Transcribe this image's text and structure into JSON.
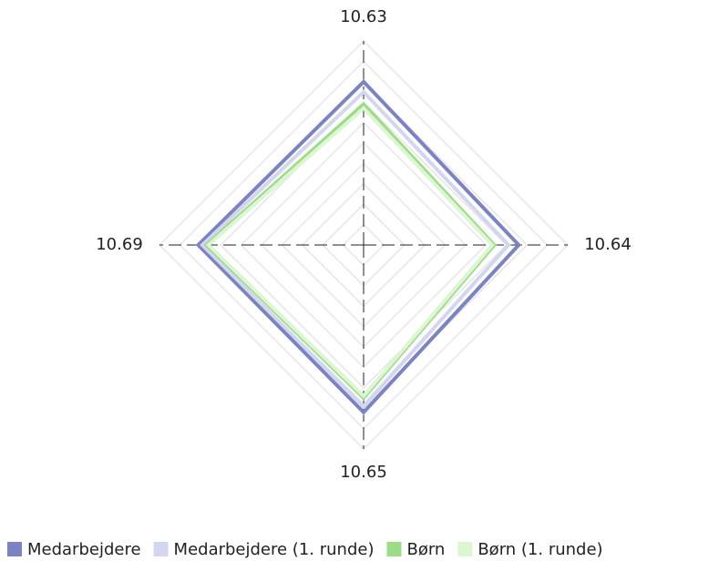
{
  "chart_data": {
    "type": "radar",
    "categories": [
      "10.63",
      "10.64",
      "10.65",
      "10.69"
    ],
    "ylim": [
      0,
      100
    ],
    "yticks": [
      10,
      20,
      30,
      40,
      50,
      60,
      70,
      80,
      90,
      100
    ],
    "grid": true,
    "legend": "bottom",
    "series": [
      {
        "name": "Medarbejdere",
        "color": "#7b83c4",
        "values": [
          80,
          76,
          82,
          81
        ]
      },
      {
        "name": "Medarbejdere (1. runde)",
        "color": "#d3d6ef",
        "values": [
          75,
          71,
          79,
          79
        ]
      },
      {
        "name": "Børn",
        "color": "#9bdc84",
        "values": [
          69,
          64,
          75,
          77
        ]
      },
      {
        "name": "Børn (1. runde)",
        "color": "#dcf5d3",
        "values": [
          67,
          63,
          74,
          76
        ]
      }
    ]
  }
}
